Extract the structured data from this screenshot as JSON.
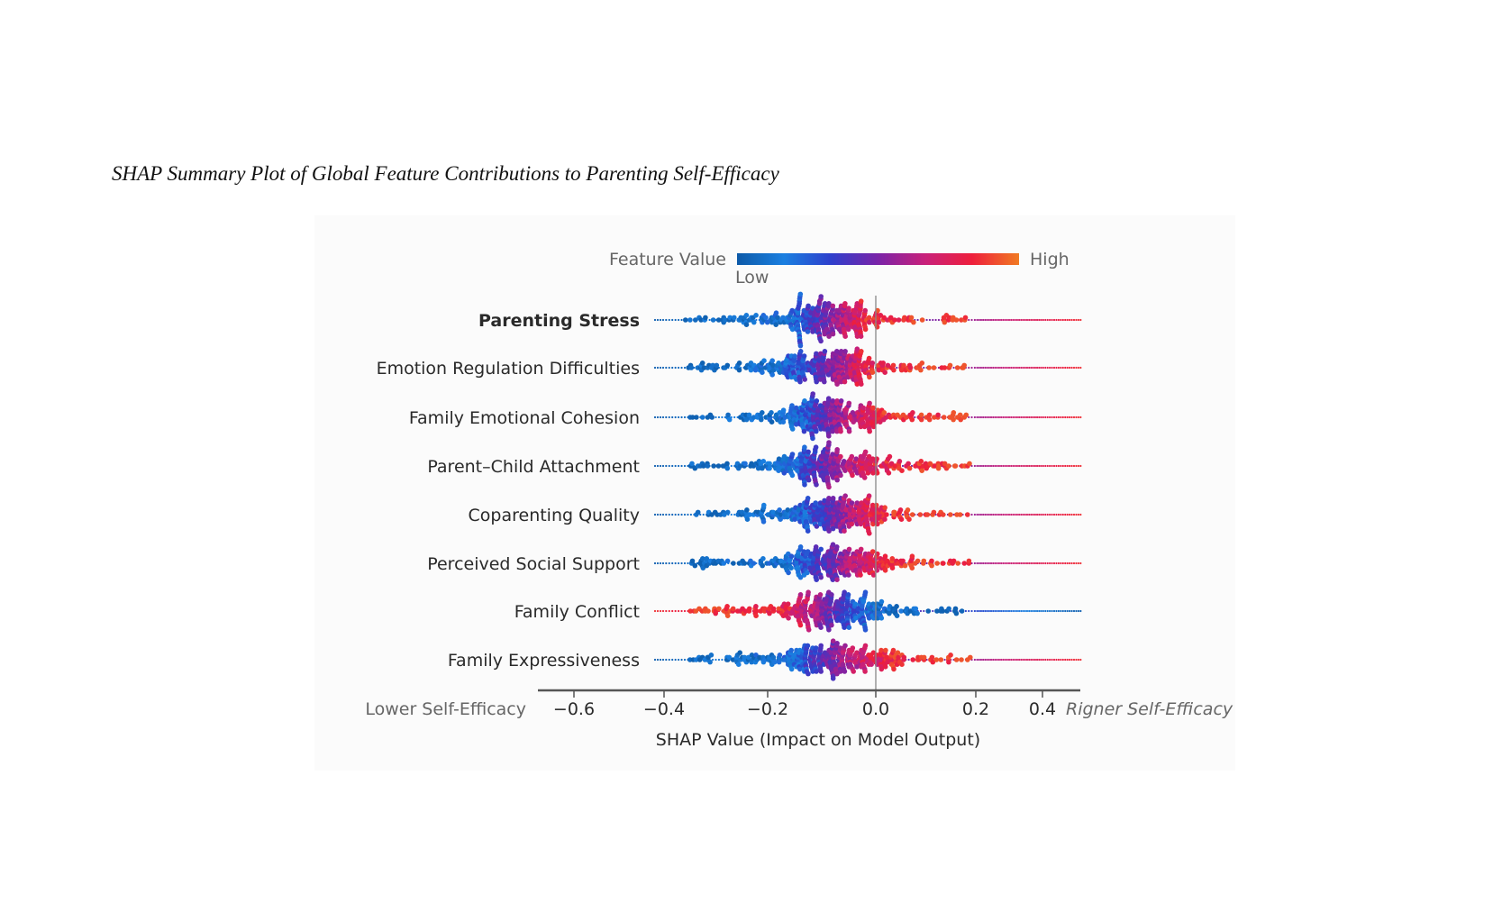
{
  "title": "SHAP Summary Plot of Global Feature Contributions to Parenting Self-Efficacy",
  "chart_data": {
    "type": "scatter",
    "subtype": "beeswarm",
    "xlabel": "SHAP Value (Impact on Model Output)",
    "x_left_annotation": "Lower Self-Efficacy",
    "x_right_annotation": "Rigner Self-Efficacy",
    "xticks": [
      -0.6,
      -0.4,
      -0.2,
      0.0,
      0.2,
      0.4
    ],
    "xtick_labels": [
      "−0.6",
      "−0.4",
      "−0.2",
      "0.0",
      "0.2",
      "0.4"
    ],
    "xlim": [
      -0.68,
      0.51
    ],
    "reference_line": 0.0,
    "colorbar": {
      "label": "Feature Value",
      "low_label": "Low",
      "high_label": "High",
      "placement": "top",
      "colors": [
        "#0d5aa8",
        "#1a7fe0",
        "#2e3fcc",
        "#7a23a8",
        "#c8207a",
        "#ee1f3c",
        "#f07a22"
      ]
    },
    "features": [
      {
        "name": "Parenting Stress",
        "bold": true,
        "min": -0.42,
        "max": 0.51,
        "peak": -0.09,
        "color_trend": "positive"
      },
      {
        "name": "Emotion Regulation Difficulties",
        "min": -0.42,
        "max": 0.51,
        "peak": -0.09,
        "color_trend": "positive"
      },
      {
        "name": "Family Emotional Cohesion",
        "min": -0.42,
        "max": 0.51,
        "peak": -0.08,
        "color_trend": "positive"
      },
      {
        "name": "Parent–Child Attachment",
        "min": -0.42,
        "max": 0.51,
        "peak": -0.08,
        "color_trend": "positive"
      },
      {
        "name": "Coparenting Quality",
        "min": -0.42,
        "max": 0.51,
        "peak": -0.07,
        "color_trend": "positive"
      },
      {
        "name": "Perceived Social Support",
        "min": -0.42,
        "max": 0.51,
        "peak": -0.08,
        "color_trend": "positive"
      },
      {
        "name": "Family Conflict",
        "min": -0.42,
        "max": 0.51,
        "peak": -0.08,
        "color_trend": "negative"
      },
      {
        "name": "Family Expressiveness",
        "min": -0.42,
        "max": 0.51,
        "peak": -0.08,
        "color_trend": "positive"
      }
    ]
  }
}
